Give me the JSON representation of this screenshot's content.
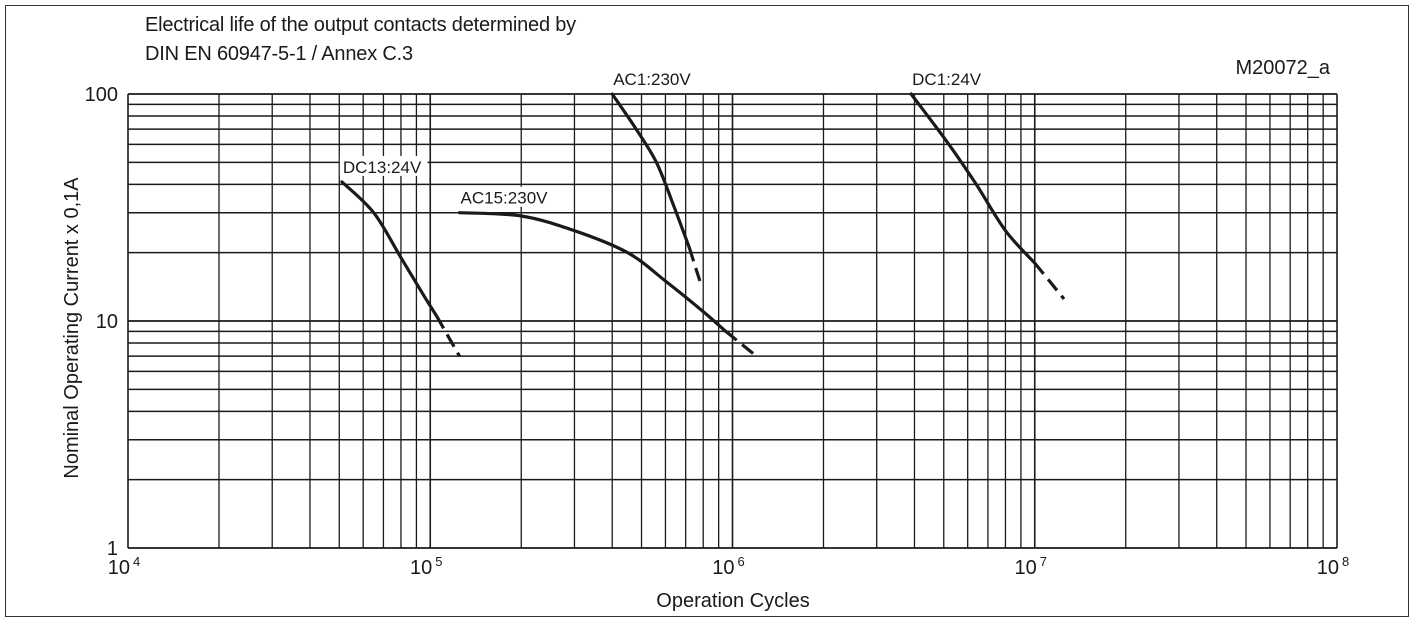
{
  "chart_data": {
    "type": "line",
    "title_lines": [
      "Electrical life of the output contacts determined by",
      "DIN EN 60947-5-1 / Annex C.3"
    ],
    "code": "M20072_a",
    "xlabel": "Operation Cycles",
    "ylabel": "Nominal Operating Current x 0,1A",
    "xscale": "log",
    "yscale": "log",
    "xlim": [
      10000,
      100000000
    ],
    "ylim": [
      1,
      100
    ],
    "grid": true,
    "x_ticks": [
      {
        "value": 10000,
        "base": "10",
        "exp": "4"
      },
      {
        "value": 100000,
        "base": "10",
        "exp": "5"
      },
      {
        "value": 1000000,
        "base": "10",
        "exp": "6"
      },
      {
        "value": 10000000,
        "base": "10",
        "exp": "7"
      },
      {
        "value": 100000000,
        "base": "10",
        "exp": "8"
      }
    ],
    "y_ticks": [
      {
        "value": 1,
        "label": "1"
      },
      {
        "value": 10,
        "label": "10"
      },
      {
        "value": 100,
        "label": "100"
      }
    ],
    "series": [
      {
        "name": "DC13:24V",
        "solid": [
          [
            51000,
            41
          ],
          [
            65000,
            30
          ],
          [
            80000,
            19
          ],
          [
            95000,
            13
          ],
          [
            105000,
            10.5
          ]
        ],
        "dashed": [
          [
            105000,
            10.5
          ],
          [
            125000,
            7
          ]
        ]
      },
      {
        "name": "AC15:230V",
        "solid": [
          [
            125000,
            30
          ],
          [
            200000,
            29
          ],
          [
            300000,
            25
          ],
          [
            450000,
            20
          ],
          [
            600000,
            15
          ],
          [
            800000,
            11
          ],
          [
            950000,
            9
          ]
        ],
        "dashed": [
          [
            950000,
            9
          ],
          [
            1200000,
            7
          ]
        ]
      },
      {
        "name": "AC1:230V",
        "solid": [
          [
            400000,
            100
          ],
          [
            480000,
            70
          ],
          [
            560000,
            50
          ],
          [
            640000,
            32
          ],
          [
            720000,
            21
          ]
        ],
        "dashed": [
          [
            720000,
            21
          ],
          [
            780000,
            15
          ]
        ]
      },
      {
        "name": "DC1:24V",
        "solid": [
          [
            3900000,
            100
          ],
          [
            5200000,
            60
          ],
          [
            6400000,
            40
          ],
          [
            8000000,
            25
          ],
          [
            10000000,
            18
          ]
        ],
        "dashed": [
          [
            10000000,
            18
          ],
          [
            12500000,
            12.5
          ]
        ]
      }
    ]
  }
}
